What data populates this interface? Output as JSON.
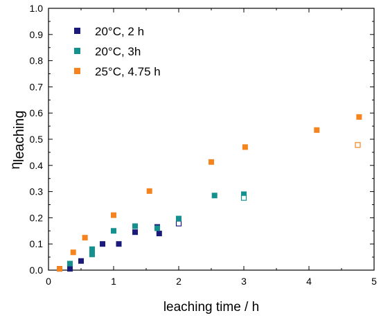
{
  "chart_data": {
    "type": "scatter",
    "xlabel": "leaching time /  h",
    "ylabel_main": "η",
    "ylabel_sub": "leaching",
    "xlim": [
      0,
      5
    ],
    "ylim": [
      0,
      1.0
    ],
    "x_ticks": [
      0,
      1,
      2,
      3,
      4,
      5
    ],
    "y_ticks": [
      "0.0",
      "0.1",
      "0.2",
      "0.3",
      "0.4",
      "0.5",
      "0.6",
      "0.7",
      "0.8",
      "0.9",
      "1.0"
    ],
    "grid": false,
    "legend_position": "top-left",
    "series": [
      {
        "name": "20°C, 2 h",
        "color": "#1a1a7a",
        "points": [
          [
            0.17,
            0.005
          ],
          [
            0.33,
            0.005
          ],
          [
            0.5,
            0.035
          ],
          [
            0.83,
            0.1
          ],
          [
            1.08,
            0.1
          ],
          [
            1.33,
            0.145
          ],
          [
            1.67,
            0.165
          ],
          [
            1.7,
            0.14
          ]
        ],
        "open_points": [
          [
            2.0,
            0.178
          ]
        ]
      },
      {
        "name": "20°C, 3h",
        "color": "#14918f",
        "points": [
          [
            0.33,
            0.025
          ],
          [
            0.67,
            0.06
          ],
          [
            0.67,
            0.08
          ],
          [
            1.0,
            0.15
          ],
          [
            1.33,
            0.168
          ],
          [
            1.67,
            0.16
          ],
          [
            2.0,
            0.197
          ],
          [
            2.55,
            0.285
          ],
          [
            3.0,
            0.29
          ]
        ],
        "open_points": [
          [
            3.0,
            0.276
          ]
        ]
      },
      {
        "name": "25°C, 4.75 h",
        "color": "#f5841f",
        "points": [
          [
            0.17,
            0.005
          ],
          [
            0.38,
            0.068
          ],
          [
            0.56,
            0.124
          ],
          [
            1.0,
            0.21
          ],
          [
            1.55,
            0.302
          ],
          [
            2.5,
            0.413
          ],
          [
            3.02,
            0.47
          ],
          [
            4.12,
            0.535
          ],
          [
            4.77,
            0.585
          ]
        ],
        "open_points": [
          [
            4.75,
            0.478
          ]
        ]
      }
    ]
  }
}
